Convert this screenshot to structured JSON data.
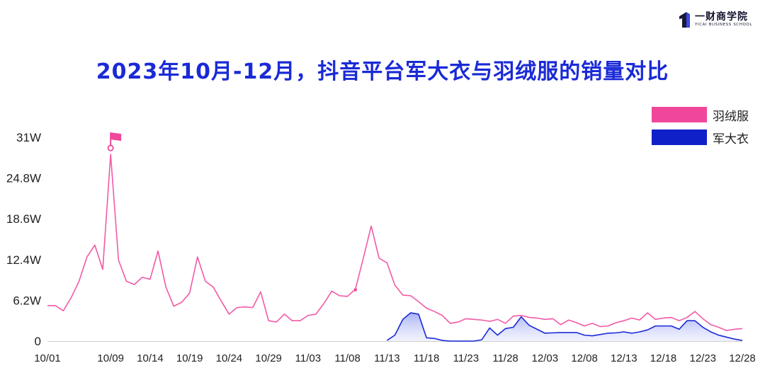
{
  "brand": {
    "name": "一财商学院",
    "sub": "YICAI BUSINESS SCHOOL"
  },
  "chart_data": {
    "type": "line",
    "title": "2023年10月-12月，抖音平台军大衣与羽绒服的销量对比",
    "xlabel": "",
    "ylabel": "",
    "yticks": [
      "0",
      "6.2W",
      "12.4W",
      "18.6W",
      "24.8W",
      "31W"
    ],
    "ylim": [
      0,
      31
    ],
    "xticks": [
      "10/01",
      "10/09",
      "10/14",
      "10/19",
      "10/24",
      "10/29",
      "11/03",
      "11/08",
      "11/13",
      "11/18",
      "11/23",
      "11/28",
      "12/03",
      "12/08",
      "12/13",
      "12/18",
      "12/23",
      "12/28"
    ],
    "grid": false,
    "legend_position": "top-right",
    "series": [
      {
        "name": "羽绒服",
        "color": "#f25aa6",
        "legend_color": "#f0479a",
        "x": [
          "10/01",
          "10/02",
          "10/03",
          "10/04",
          "10/05",
          "10/06",
          "10/07",
          "10/08",
          "10/09",
          "10/10",
          "10/11",
          "10/12",
          "10/13",
          "10/14",
          "10/15",
          "10/16",
          "10/17",
          "10/18",
          "10/19",
          "10/20",
          "10/21",
          "10/22",
          "10/23",
          "10/24",
          "10/25",
          "10/26",
          "10/27",
          "10/28",
          "10/29",
          "10/30",
          "10/31",
          "11/01",
          "11/02",
          "11/03",
          "11/04",
          "11/05",
          "11/06",
          "11/07",
          "11/08",
          "11/09",
          "11/10",
          "11/11",
          "11/12",
          "11/13",
          "11/14",
          "11/15",
          "11/16",
          "11/17",
          "11/18",
          "11/19",
          "11/20",
          "11/21",
          "11/22",
          "11/23",
          "11/24",
          "11/25",
          "11/26",
          "11/27",
          "11/28",
          "11/29",
          "11/30",
          "12/01",
          "12/02",
          "12/03",
          "12/04",
          "12/05",
          "12/06",
          "12/07",
          "12/08",
          "12/09",
          "12/10",
          "12/11",
          "12/12",
          "12/13",
          "12/14",
          "12/15",
          "12/16",
          "12/17",
          "12/18",
          "12/19",
          "12/20",
          "12/21",
          "12/22",
          "12/23",
          "12/24",
          "12/25",
          "12/26",
          "12/27",
          "12/28"
        ],
        "values": [
          5.4,
          5.4,
          4.6,
          6.6,
          9.1,
          12.8,
          14.6,
          10.9,
          28.4,
          12.3,
          9.1,
          8.6,
          9.7,
          9.4,
          13.7,
          8.2,
          5.3,
          5.9,
          7.3,
          12.8,
          9.1,
          8.2,
          6.1,
          4.1,
          5.1,
          5.2,
          5.1,
          7.5,
          3.1,
          2.9,
          4.1,
          3.1,
          3.1,
          3.9,
          4.1,
          5.7,
          7.6,
          6.9,
          6.8,
          7.9,
          12.6,
          17.5,
          12.6,
          11.9,
          8.5,
          7.0,
          6.9,
          6.0,
          5.0,
          4.5,
          3.9,
          2.7,
          2.9,
          3.4,
          3.3,
          3.2,
          3.0,
          3.3,
          2.7,
          3.8,
          3.9,
          3.6,
          3.5,
          3.3,
          3.4,
          2.5,
          3.2,
          2.8,
          2.3,
          2.7,
          2.2,
          2.3,
          2.8,
          3.1,
          3.5,
          3.2,
          4.3,
          3.3,
          3.5,
          3.6,
          3.1,
          3.6,
          4.5,
          3.4,
          2.5,
          2.1,
          1.6,
          1.8,
          1.9
        ]
      },
      {
        "name": "军大衣",
        "color": "#1a2ad6",
        "legend_color": "#1020c8",
        "x": [
          "11/13",
          "11/14",
          "11/15",
          "11/16",
          "11/17",
          "11/18",
          "11/19",
          "11/20",
          "11/21",
          "11/22",
          "11/23",
          "11/24",
          "11/25",
          "11/26",
          "11/27",
          "11/28",
          "11/29",
          "11/30",
          "12/01",
          "12/02",
          "12/03",
          "12/04",
          "12/05",
          "12/06",
          "12/07",
          "12/08",
          "12/09",
          "12/10",
          "12/11",
          "12/12",
          "12/13",
          "12/14",
          "12/15",
          "12/16",
          "12/17",
          "12/18",
          "12/19",
          "12/20",
          "12/21",
          "12/22",
          "12/23",
          "12/24",
          "12/25",
          "12/26",
          "12/27",
          "12/28"
        ],
        "values": [
          0.1,
          0.9,
          3.3,
          4.3,
          4.1,
          0.5,
          0.4,
          0.1,
          0.0,
          0.0,
          0.0,
          0.0,
          0.2,
          2.0,
          0.9,
          1.9,
          2.1,
          3.7,
          2.4,
          1.8,
          1.2,
          1.25,
          1.3,
          1.3,
          1.3,
          0.9,
          0.8,
          1.0,
          1.2,
          1.25,
          1.4,
          1.2,
          1.4,
          1.7,
          2.3,
          2.3,
          2.3,
          1.8,
          3.1,
          3.1,
          2.1,
          1.4,
          0.9,
          0.6,
          0.3,
          0.1
        ]
      }
    ],
    "annotations": [
      {
        "x": "10/09",
        "y": 28.4,
        "marker": "flag",
        "series": "羽绒服"
      }
    ]
  }
}
